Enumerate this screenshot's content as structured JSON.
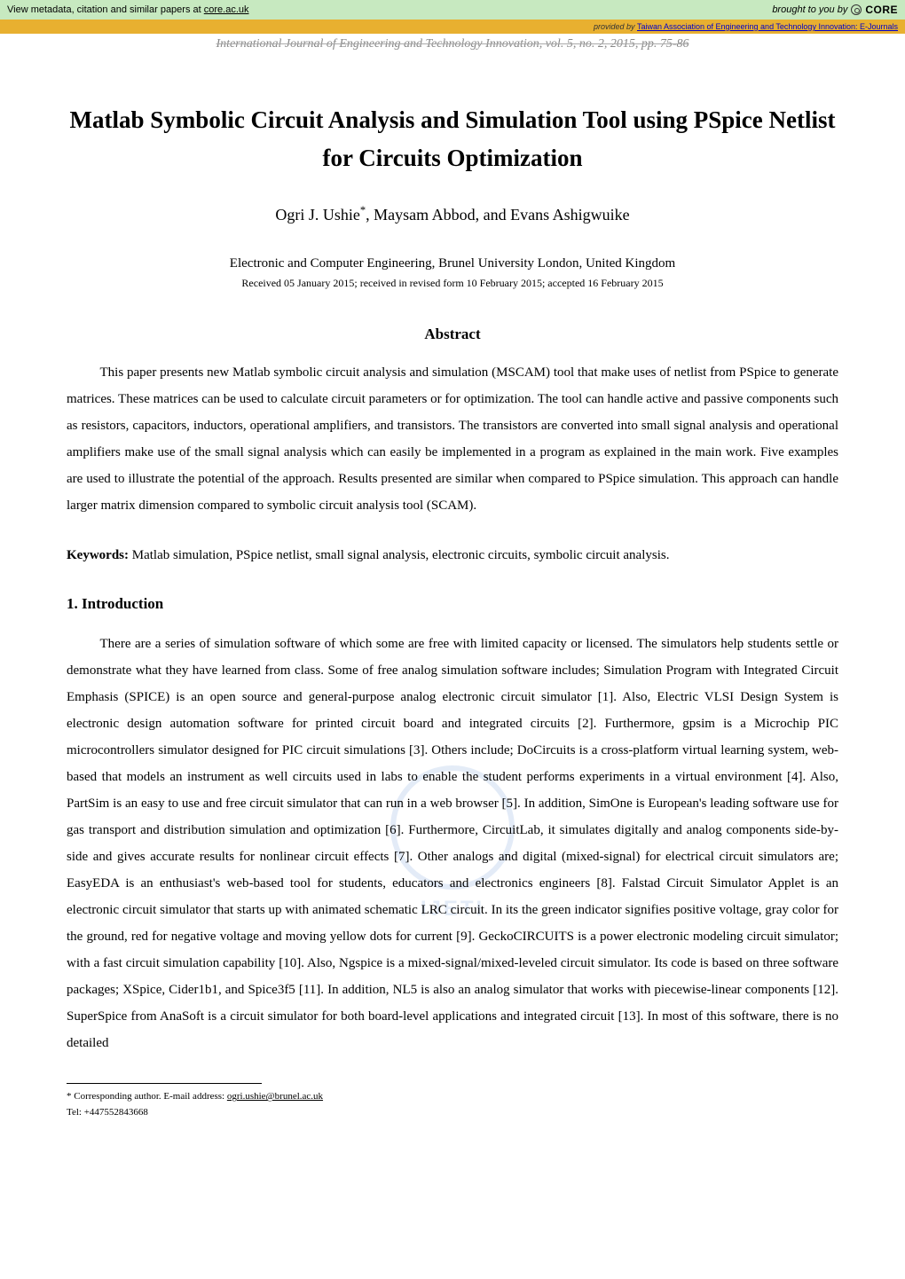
{
  "core_bar": {
    "left_prefix": "View metadata, citation and similar papers at ",
    "left_link": "core.ac.uk",
    "right_prefix": "brought to you by",
    "logo": "CORE"
  },
  "provided_bar": {
    "prefix": "provided by ",
    "source": "Taiwan Association of Engineering and Technology Innovation: E-Journals"
  },
  "journal_header": "International Journal of Engineering and Technology Innovation, vol. 5, no. 2, 2015, pp. 75-86",
  "title": "Matlab Symbolic Circuit Analysis and Simulation Tool using PSpice Netlist for Circuits Optimization",
  "authors_pre": "Ogri J. Ushie",
  "authors_sup": "*",
  "authors_post": ", Maysam Abbod, and Evans Ashigwuike",
  "affiliation": "Electronic and Computer Engineering, Brunel University London, United Kingdom",
  "dates": "Received 05 January 2015; received in revised form 10 February 2015; accepted 16 February 2015",
  "abstract_heading": "Abstract",
  "abstract_body": "This paper presents new Matlab symbolic circuit analysis and simulation (MSCAM) tool that make uses of netlist from PSpice to generate matrices. These matrices can be used to calculate circuit parameters or for optimization. The tool can handle active and passive components such as resistors, capacitors, inductors, operational amplifiers, and transistors.  The transistors are converted into small signal analysis and operational amplifiers make use of the small signal analysis which can easily be implemented in a program as explained in the main work. Five examples are used to illustrate the potential of the approach. Results presented are similar when compared to PSpice simulation.  This approach can handle larger matrix dimension compared to symbolic circuit analysis tool (SCAM).",
  "keywords_label": "Keywords:",
  "keywords_text": " Matlab simulation, PSpice netlist, small signal analysis, electronic circuits, symbolic circuit analysis.",
  "section1_heading": "1.   Introduction",
  "body_para": "There are a series of simulation software of which some are free with limited capacity or licensed. The simulators help students settle or demonstrate what they have learned from class. Some of free analog simulation software includes; Simulation Program with Integrated Circuit Emphasis (SPICE) is an open source and general-purpose analog electronic circuit simulator [1]. Also, Electric VLSI Design System is electronic design automation software for printed circuit board and integrated circuits [2]. Furthermore, gpsim is a Microchip PIC microcontrollers simulator designed for PIC circuit simulations [3]. Others include; DoCircuits is a cross-platform virtual learning system, web-based that models an instrument as well circuits used in labs to enable the student performs experiments in a virtual environment [4]. Also, PartSim is an easy to use and free circuit simulator that can run in a web browser [5].  In addition, SimOne is European's leading software use for gas transport and distribution simulation and optimization [6]. Furthermore, CircuitLab, it simulates digitally and analog components side-by-side and gives accurate results for nonlinear circuit effects [7]. Other analogs and digital (mixed-signal) for electrical circuit simulators are; EasyEDA is an enthusiast's web-based tool for students, educators and electronics engineers [8]. Falstad Circuit Simulator Applet is an electronic circuit simulator that starts up with animated schematic LRC circuit. In its the green indicator signifies positive voltage, gray color for the ground, red for negative voltage and moving yellow dots for current [9]. GeckoCIRCUITS is a power electronic modeling circuit simulator; with a fast circuit simulation capability [10]. Also, Ngspice is a mixed-signal/mixed-leveled circuit simulator. Its code is based on three software packages; XSpice, Cider1b1, and Spice3f5 [11]. In addition, NL5 is also an analog simulator that works with piecewise-linear components [12]. SuperSpice from AnaSoft is a circuit simulator for both board-level applications and integrated circuit [13]. In most of this software, there is no detailed",
  "watermark": "IJETI",
  "footnote_marker": "*",
  "footnote_text": " Corresponding author. E-mail address: ",
  "footnote_email": "ogri.ushie@brunel.ac.uk",
  "footnote_tel": "Tel: +447552843668"
}
